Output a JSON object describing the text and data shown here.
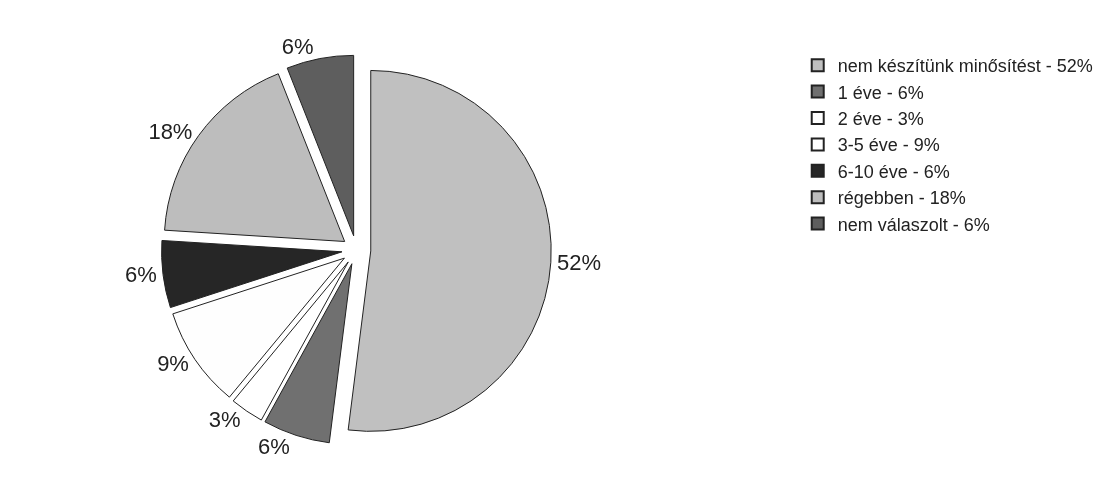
{
  "chart_data": {
    "type": "pie",
    "categories": [
      "nem készítünk minősítést - 52%",
      "1 éve - 6%",
      "2 éve - 3%",
      "3-5 éve - 9%",
      "6-10 éve - 6%",
      "régebben - 18%",
      "nem válaszolt - 6%"
    ],
    "values": [
      52,
      6,
      3,
      9,
      6,
      18,
      6
    ],
    "value_labels": [
      "52%",
      "6%",
      "3%",
      "9%",
      "6%",
      "18%",
      "6%"
    ],
    "colors": [
      "#c0c0c0",
      "#707070",
      "#ffffff",
      "#fefefe",
      "#262626",
      "#bdbdbd",
      "#5e5e5e"
    ],
    "legend": "right"
  }
}
